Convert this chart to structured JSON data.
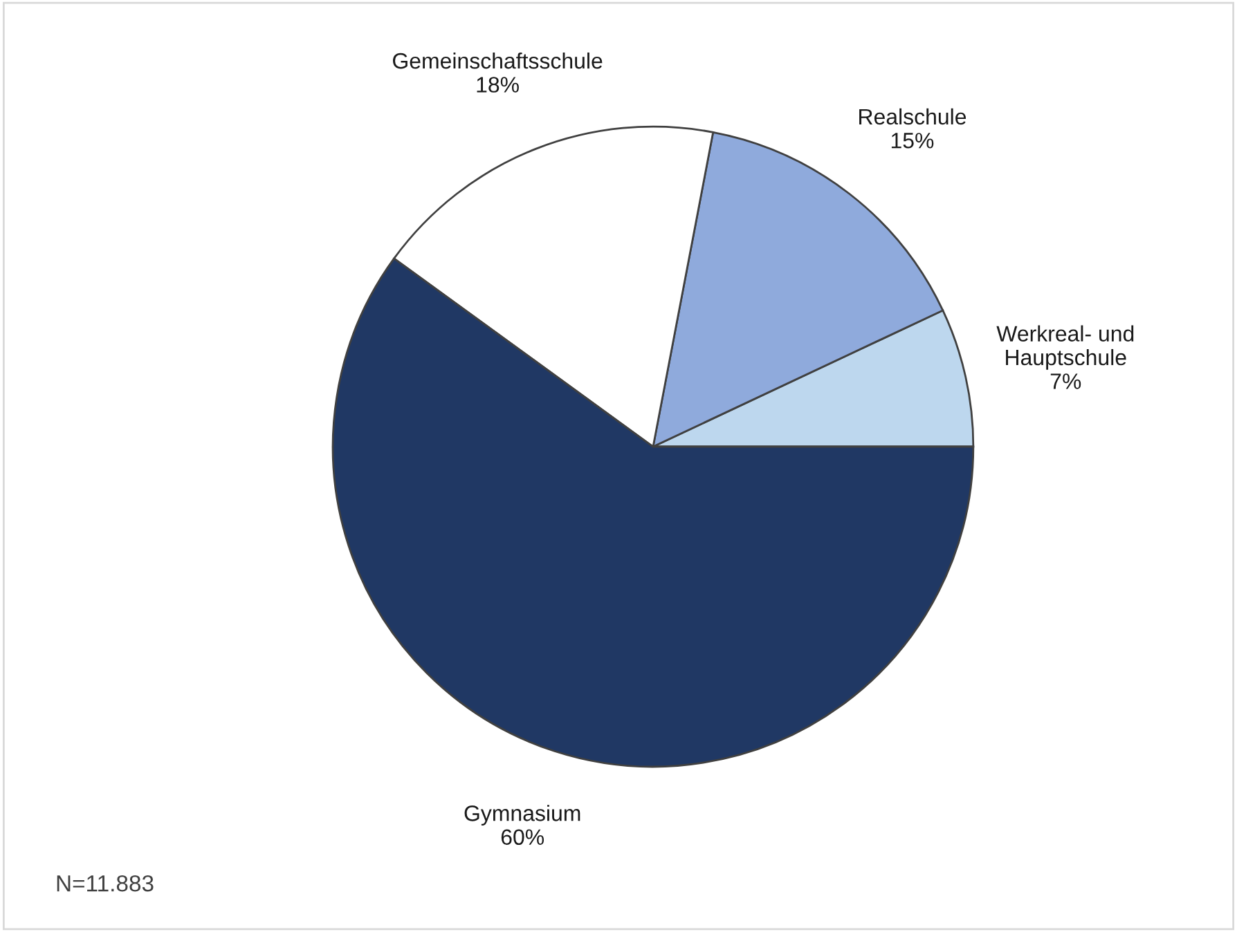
{
  "chart_data": {
    "type": "pie",
    "categories": [
      "Werkreal- und\nHauptschule",
      "Realschule",
      "Gemeinschaftsschule",
      "Gymnasium"
    ],
    "values": [
      7,
      15,
      18,
      60
    ],
    "value_labels": [
      "7%",
      "15%",
      "18%",
      "60%"
    ],
    "colors": [
      "#bdd7ee",
      "#8faadc",
      "#ffffff",
      "#203864"
    ],
    "annotations": [
      "N=11.883"
    ],
    "legend": false
  }
}
